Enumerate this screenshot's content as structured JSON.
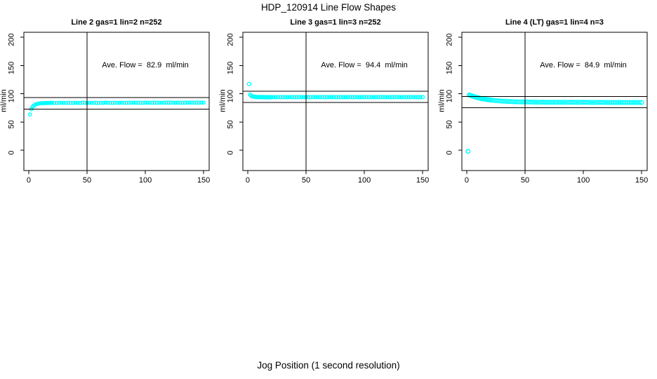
{
  "page": {
    "title": "HDP_120914  Line Flow Shapes",
    "xlabel": "Jog Position (1 second resolution)"
  },
  "colors": {
    "points": "#00ffff",
    "axis": "#000000",
    "background": "#ffffff"
  },
  "chart_data": [
    {
      "type": "scatter",
      "title": "Line 2 gas=1 lin=2 n=252",
      "annotation": "Ave. Flow =  82.9  ml/min",
      "ave_flow": 82.9,
      "ylabel": "ml/min",
      "xticks": [
        0,
        50,
        100,
        150
      ],
      "yticks": [
        0,
        50,
        100,
        150,
        200
      ],
      "xlim": [
        -4.2,
        154.8
      ],
      "ylim": [
        -36,
        208.7
      ],
      "vline_x": 50,
      "hlines": [
        92.9,
        72.9
      ],
      "marker_r": 2.2,
      "points": [
        [
          1,
          63.3
        ],
        [
          2,
          72.5
        ],
        [
          3,
          76.3
        ],
        [
          4,
          78.6
        ],
        [
          5,
          80.1
        ],
        [
          6,
          81.2
        ],
        [
          7,
          81.9
        ],
        [
          8,
          82.4
        ],
        [
          9,
          82.8
        ],
        [
          10,
          83
        ],
        [
          11,
          83.2
        ],
        [
          12,
          83.3
        ],
        [
          13,
          83.4
        ],
        [
          14,
          83.5
        ],
        [
          15,
          83.5
        ],
        [
          16,
          83.6
        ],
        [
          17,
          83.6
        ],
        [
          18,
          83.6
        ],
        [
          19,
          83.7
        ],
        [
          20,
          83.7
        ],
        [
          22,
          83.8
        ],
        [
          24,
          83.6
        ],
        [
          26,
          84
        ],
        [
          28,
          83.7
        ],
        [
          30,
          83.9
        ],
        [
          32,
          83.6
        ],
        [
          34,
          84.1
        ],
        [
          36,
          83.8
        ],
        [
          38,
          83.7
        ],
        [
          40,
          84
        ],
        [
          42,
          83.8
        ],
        [
          44,
          83.6
        ],
        [
          46,
          84.2
        ],
        [
          48,
          83.9
        ],
        [
          50,
          83.7
        ],
        [
          52,
          84
        ],
        [
          54,
          83.8
        ],
        [
          56,
          84.1
        ],
        [
          58,
          83.7
        ],
        [
          60,
          83.9
        ],
        [
          62,
          84
        ],
        [
          64,
          83.8
        ],
        [
          66,
          84.2
        ],
        [
          68,
          83.9
        ],
        [
          70,
          84
        ],
        [
          72,
          83.8
        ],
        [
          74,
          84.1
        ],
        [
          76,
          83.9
        ],
        [
          78,
          84
        ],
        [
          80,
          84.2
        ],
        [
          82,
          83.9
        ],
        [
          84,
          84
        ],
        [
          86,
          84.1
        ],
        [
          88,
          83.9
        ],
        [
          90,
          84.2
        ],
        [
          92,
          84
        ],
        [
          94,
          84.1
        ],
        [
          96,
          83.9
        ],
        [
          98,
          84
        ],
        [
          100,
          84.2
        ],
        [
          102,
          84
        ],
        [
          104,
          84.1
        ],
        [
          106,
          84
        ],
        [
          108,
          84.2
        ],
        [
          110,
          84
        ],
        [
          112,
          84.1
        ],
        [
          114,
          84
        ],
        [
          116,
          84.2
        ],
        [
          118,
          84.1
        ],
        [
          120,
          84
        ],
        [
          122,
          84.2
        ],
        [
          124,
          84.1
        ],
        [
          126,
          84
        ],
        [
          128,
          84.2
        ],
        [
          130,
          84.1
        ],
        [
          132,
          84
        ],
        [
          134,
          84.2
        ],
        [
          136,
          84.1
        ],
        [
          138,
          84.3
        ],
        [
          140,
          84.1
        ],
        [
          142,
          84.2
        ],
        [
          144,
          84.1
        ],
        [
          146,
          84.3
        ],
        [
          148,
          84.2
        ],
        [
          150,
          84.2
        ]
      ]
    },
    {
      "type": "scatter",
      "title": "Line 3 gas=1 lin=3 n=252",
      "annotation": "Ave. Flow =  94.4  ml/min",
      "ave_flow": 94.4,
      "ylabel": "ml/min",
      "xticks": [
        0,
        50,
        100,
        150
      ],
      "yticks": [
        0,
        50,
        100,
        150,
        200
      ],
      "xlim": [
        -4.2,
        154.8
      ],
      "ylim": [
        -36,
        208.7
      ],
      "vline_x": 50,
      "hlines": [
        104.4,
        84.4
      ],
      "marker_r": 2.4,
      "points": [
        [
          1,
          117.2
        ],
        [
          2,
          98.3
        ],
        [
          3,
          96.2
        ],
        [
          4,
          95.2
        ],
        [
          5,
          94.7
        ],
        [
          6,
          94.4
        ],
        [
          7,
          94.2
        ],
        [
          8,
          94.1
        ],
        [
          9,
          94
        ],
        [
          10,
          94
        ],
        [
          11,
          93.9
        ],
        [
          12,
          93.9
        ],
        [
          13,
          93.9
        ],
        [
          14,
          93.8
        ],
        [
          15,
          93.8
        ],
        [
          16,
          93.8
        ],
        [
          17,
          93.8
        ],
        [
          18,
          93.8
        ],
        [
          19,
          93.8
        ],
        [
          20,
          93.8
        ],
        [
          22,
          94
        ],
        [
          24,
          93.8
        ],
        [
          26,
          94.1
        ],
        [
          28,
          93.9
        ],
        [
          30,
          93.8
        ],
        [
          32,
          94
        ],
        [
          34,
          93.8
        ],
        [
          36,
          94.1
        ],
        [
          38,
          93.9
        ],
        [
          40,
          93.8
        ],
        [
          42,
          94
        ],
        [
          44,
          93.9
        ],
        [
          46,
          94.1
        ],
        [
          48,
          93.8
        ],
        [
          50,
          94
        ],
        [
          52,
          93.9
        ],
        [
          54,
          93.8
        ],
        [
          56,
          94
        ],
        [
          58,
          93.9
        ],
        [
          60,
          94.1
        ],
        [
          62,
          93.8
        ],
        [
          64,
          94
        ],
        [
          66,
          93.9
        ],
        [
          68,
          93.8
        ],
        [
          70,
          94
        ],
        [
          72,
          93.9
        ],
        [
          74,
          94.1
        ],
        [
          76,
          93.8
        ],
        [
          78,
          94
        ],
        [
          80,
          93.9
        ],
        [
          82,
          93.8
        ],
        [
          84,
          94
        ],
        [
          86,
          93.9
        ],
        [
          88,
          94.1
        ],
        [
          90,
          93.8
        ],
        [
          92,
          94
        ],
        [
          94,
          93.9
        ],
        [
          96,
          93.8
        ],
        [
          98,
          94
        ],
        [
          100,
          93.9
        ],
        [
          102,
          94.1
        ],
        [
          104,
          93.8
        ],
        [
          106,
          94
        ],
        [
          108,
          93.9
        ],
        [
          110,
          93.8
        ],
        [
          112,
          94
        ],
        [
          114,
          93.9
        ],
        [
          116,
          94.1
        ],
        [
          118,
          93.8
        ],
        [
          120,
          94
        ],
        [
          122,
          93.9
        ],
        [
          124,
          93.8
        ],
        [
          126,
          94
        ],
        [
          128,
          93.9
        ],
        [
          130,
          94.1
        ],
        [
          132,
          93.8
        ],
        [
          134,
          94
        ],
        [
          136,
          93.9
        ],
        [
          138,
          93.8
        ],
        [
          140,
          94
        ],
        [
          142,
          93.9
        ],
        [
          144,
          94.1
        ],
        [
          146,
          93.8
        ],
        [
          148,
          94
        ],
        [
          150,
          93.9
        ]
      ]
    },
    {
      "type": "scatter",
      "title": "Line 4 (LT) gas=1 lin=4 n=3",
      "annotation": "Ave. Flow =  84.9  ml/min",
      "ave_flow": 84.9,
      "ylabel": "ml/min",
      "xticks": [
        0,
        50,
        100,
        150
      ],
      "yticks": [
        0,
        50,
        100,
        150,
        200
      ],
      "xlim": [
        -4.2,
        154.8
      ],
      "ylim": [
        -36,
        208.7
      ],
      "vline_x": 50,
      "hlines": [
        94.9,
        74.9
      ],
      "marker_r": 2.8,
      "points": [
        [
          1,
          -2
        ],
        [
          2,
          97.8
        ],
        [
          3,
          97
        ],
        [
          4,
          96.2
        ],
        [
          5,
          95.5
        ],
        [
          6,
          94.9
        ],
        [
          7,
          94.2
        ],
        [
          8,
          93.7
        ],
        [
          9,
          93.1
        ],
        [
          10,
          92.6
        ],
        [
          11,
          92.1
        ],
        [
          12,
          91.7
        ],
        [
          13,
          91.2
        ],
        [
          14,
          90.8
        ],
        [
          15,
          90.5
        ],
        [
          16,
          90.1
        ],
        [
          17,
          89.8
        ],
        [
          18,
          89.5
        ],
        [
          19,
          89.2
        ],
        [
          20,
          88.9
        ],
        [
          22,
          88.4
        ],
        [
          24,
          88
        ],
        [
          26,
          87.6
        ],
        [
          28,
          87.2
        ],
        [
          30,
          86.9
        ],
        [
          32,
          86.6
        ],
        [
          34,
          86.4
        ],
        [
          36,
          86.2
        ],
        [
          38,
          86
        ],
        [
          40,
          85.8
        ],
        [
          42,
          85.7
        ],
        [
          44,
          85.6
        ],
        [
          46,
          85.5
        ],
        [
          48,
          85.4
        ],
        [
          50,
          85.3
        ],
        [
          52,
          85.3
        ],
        [
          54,
          85.2
        ],
        [
          56,
          85.2
        ],
        [
          58,
          85.1
        ],
        [
          60,
          85.1
        ],
        [
          62,
          85
        ],
        [
          64,
          85
        ],
        [
          66,
          85
        ],
        [
          68,
          84.9
        ],
        [
          70,
          84.9
        ],
        [
          72,
          84.9
        ],
        [
          74,
          84.9
        ],
        [
          76,
          84.8
        ],
        [
          78,
          84.8
        ],
        [
          80,
          84.8
        ],
        [
          82,
          84.8
        ],
        [
          84,
          84.8
        ],
        [
          86,
          84.8
        ],
        [
          88,
          84.7
        ],
        [
          90,
          84.7
        ],
        [
          92,
          84.7
        ],
        [
          94,
          84.7
        ],
        [
          96,
          84.7
        ],
        [
          98,
          84.7
        ],
        [
          100,
          84.7
        ],
        [
          102,
          84.7
        ],
        [
          104,
          84.6
        ],
        [
          106,
          84.6
        ],
        [
          108,
          84.6
        ],
        [
          110,
          84.6
        ],
        [
          112,
          84.6
        ],
        [
          114,
          84.6
        ],
        [
          116,
          84.6
        ],
        [
          118,
          84.6
        ],
        [
          120,
          84.6
        ],
        [
          122,
          84.5
        ],
        [
          124,
          84.5
        ],
        [
          126,
          84.5
        ],
        [
          128,
          84.5
        ],
        [
          130,
          84.5
        ],
        [
          132,
          84.5
        ],
        [
          134,
          84.5
        ],
        [
          136,
          84.5
        ],
        [
          138,
          84.5
        ],
        [
          140,
          84.5
        ],
        [
          142,
          84.5
        ],
        [
          144,
          84.5
        ],
        [
          146,
          84.5
        ],
        [
          148,
          84.5
        ],
        [
          150,
          84.5
        ]
      ]
    }
  ]
}
